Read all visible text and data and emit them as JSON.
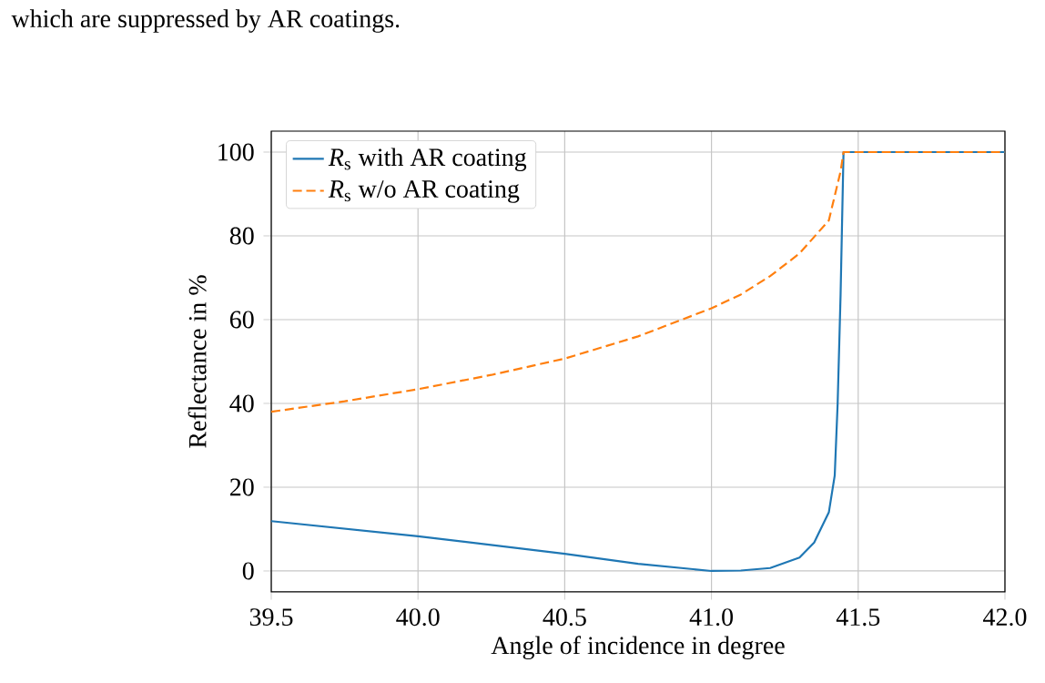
{
  "chart_data": {
    "type": "line",
    "xlabel": "Angle of incidence in degree",
    "ylabel": "Reflectance in %",
    "annotations": [
      "which are suppressed by AR coatings."
    ],
    "series": [
      {
        "name": "*R*$_{s}$ with AR coating",
        "color": "#1f77b4",
        "line_style": "solid",
        "x": [
          39.5,
          40.0,
          40.5,
          40.75,
          41.0,
          41.1,
          41.2,
          41.3,
          41.35,
          41.4,
          41.42,
          41.43,
          41.44,
          41.45,
          42.0
        ],
        "values": [
          11.9,
          8.3,
          4.1,
          1.7,
          0.0,
          0.1,
          0.7,
          3.2,
          6.8,
          14.0,
          22.8,
          40.0,
          66.0,
          100.0,
          100.0
        ]
      },
      {
        "name": "*R*$_{s}$ w/o AR coating",
        "color": "#ff7f0e",
        "line_style": "dashed",
        "x": [
          39.5,
          39.75,
          40.0,
          40.25,
          40.5,
          40.75,
          41.0,
          41.1,
          41.2,
          41.3,
          41.4,
          41.44,
          41.45,
          42.0
        ],
        "values": [
          38.0,
          40.5,
          43.4,
          46.8,
          50.7,
          56.0,
          62.7,
          66.0,
          70.4,
          75.8,
          83.7,
          95.4,
          100.0,
          100.0
        ]
      }
    ],
    "xlim": [
      39.5,
      42.0
    ],
    "ylim": [
      -5,
      105
    ],
    "xticks": [
      {
        "value": 39.5,
        "label": "39.5"
      },
      {
        "value": 40.0,
        "label": "40.0"
      },
      {
        "value": 40.5,
        "label": "40.5"
      },
      {
        "value": 41.0,
        "label": "41.0"
      },
      {
        "value": 41.5,
        "label": "41.5"
      },
      {
        "value": 42.0,
        "label": "42.0"
      }
    ],
    "yticks": [
      0,
      20,
      40,
      60,
      80,
      100
    ],
    "grid": true,
    "legend": "top left"
  }
}
